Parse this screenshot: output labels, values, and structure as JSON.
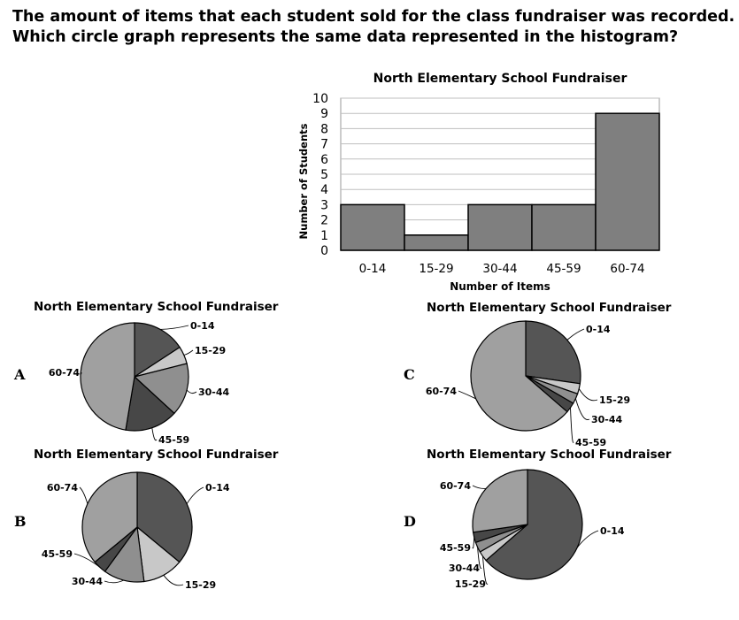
{
  "question": {
    "line1": "The amount of items that each student sold for the class fundraiser was recorded.",
    "line2": "Which circle graph represents the same data represented in the histogram?"
  },
  "options": {
    "a": "A",
    "b": "B",
    "c": "C",
    "d": "D"
  },
  "colors": {
    "bar_fill": "#7f7f7f",
    "bar_stroke": "#000000",
    "grid": "#bfbfbf",
    "slice_dark": "#555555",
    "slice_darker": "#474747",
    "slice_mid": "#8f8f8f",
    "slice_light": "#c8c8c8",
    "slice_large": "#a0a0a0"
  },
  "chart_data": [
    {
      "id": "histogram",
      "type": "bar",
      "title": "North Elementary School Fundraiser",
      "xlabel": "Number of Items",
      "ylabel": "Number of Students",
      "categories": [
        "0-14",
        "15-29",
        "30-44",
        "45-59",
        "60-74"
      ],
      "values": [
        3,
        1,
        3,
        3,
        9
      ],
      "ylim": [
        0,
        10
      ],
      "yticks": [
        "0",
        "1",
        "2",
        "3",
        "4",
        "5",
        "6",
        "7",
        "8",
        "9",
        "10"
      ],
      "grid": true
    },
    {
      "id": "pie-a",
      "type": "pie",
      "title": "North Elementary School Fundraiser",
      "labels": [
        "0-14",
        "15-29",
        "30-44",
        "45-59",
        "60-74"
      ],
      "values": [
        3,
        1,
        3,
        3,
        9
      ]
    },
    {
      "id": "pie-b",
      "type": "pie",
      "title": "North Elementary School Fundraiser",
      "labels": [
        "0-14",
        "15-29",
        "30-44",
        "45-59",
        "60-74"
      ],
      "values": [
        9,
        3,
        3,
        1,
        9
      ]
    },
    {
      "id": "pie-c",
      "type": "pie",
      "title": "North Elementary School Fundraiser",
      "labels": [
        "0-14",
        "15-29",
        "30-44",
        "45-59",
        "60-74"
      ],
      "values": [
        9,
        1,
        1,
        1,
        21
      ]
    },
    {
      "id": "pie-d",
      "type": "pie",
      "title": "North Elementary School Fundraiser",
      "labels": [
        "0-14",
        "15-29",
        "30-44",
        "45-59",
        "60-74"
      ],
      "values": [
        21,
        1,
        1,
        1,
        9
      ]
    }
  ]
}
